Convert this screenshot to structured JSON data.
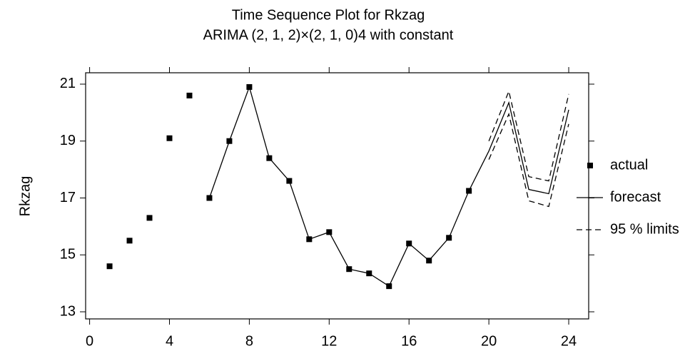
{
  "chart_data": {
    "type": "line",
    "title": "Time Sequence Plot for Rkzag",
    "subtitle": "ARIMA (2, 1, 2)×(2, 1, 0)4 with constant",
    "y_label": "Rkzag",
    "xlim": [
      -0.2,
      25
    ],
    "xticks": [
      0,
      4,
      8,
      12,
      16,
      20,
      24
    ],
    "ylim": [
      12.75,
      21.4
    ],
    "yticks": [
      13,
      15,
      17,
      19,
      21
    ],
    "series": [
      {
        "name": "actual",
        "style": "marker",
        "color": "#000000",
        "x": [
          1,
          2,
          3,
          4,
          5,
          6,
          7,
          8,
          9,
          10,
          11,
          12,
          13,
          14,
          15,
          16,
          17,
          18,
          19
        ],
        "values": [
          14.6,
          15.5,
          16.3,
          19.1,
          20.6,
          17.0,
          19.0,
          20.9,
          18.4,
          17.6,
          15.55,
          15.8,
          14.5,
          14.35,
          13.9,
          15.4,
          14.8,
          15.6,
          17.25
        ]
      },
      {
        "name": "forecast",
        "style": "solid",
        "color": "#000000",
        "x": [
          6,
          7,
          8,
          9,
          10,
          11,
          12,
          13,
          14,
          15,
          16,
          17,
          18,
          19,
          20,
          21,
          22,
          23,
          24
        ],
        "values": [
          17.0,
          19.0,
          20.9,
          18.4,
          17.6,
          15.55,
          15.8,
          14.5,
          14.35,
          13.9,
          15.4,
          14.8,
          15.6,
          17.25,
          18.65,
          20.35,
          17.3,
          17.15,
          20.1
        ]
      },
      {
        "name": "95 % limits",
        "style": "dashed",
        "color": "#000000",
        "x": [
          20,
          21,
          22,
          23,
          24
        ],
        "upper": [
          19.0,
          20.75,
          17.75,
          17.6,
          20.65
        ],
        "lower": [
          18.35,
          19.95,
          16.9,
          16.7,
          19.6
        ]
      }
    ]
  }
}
